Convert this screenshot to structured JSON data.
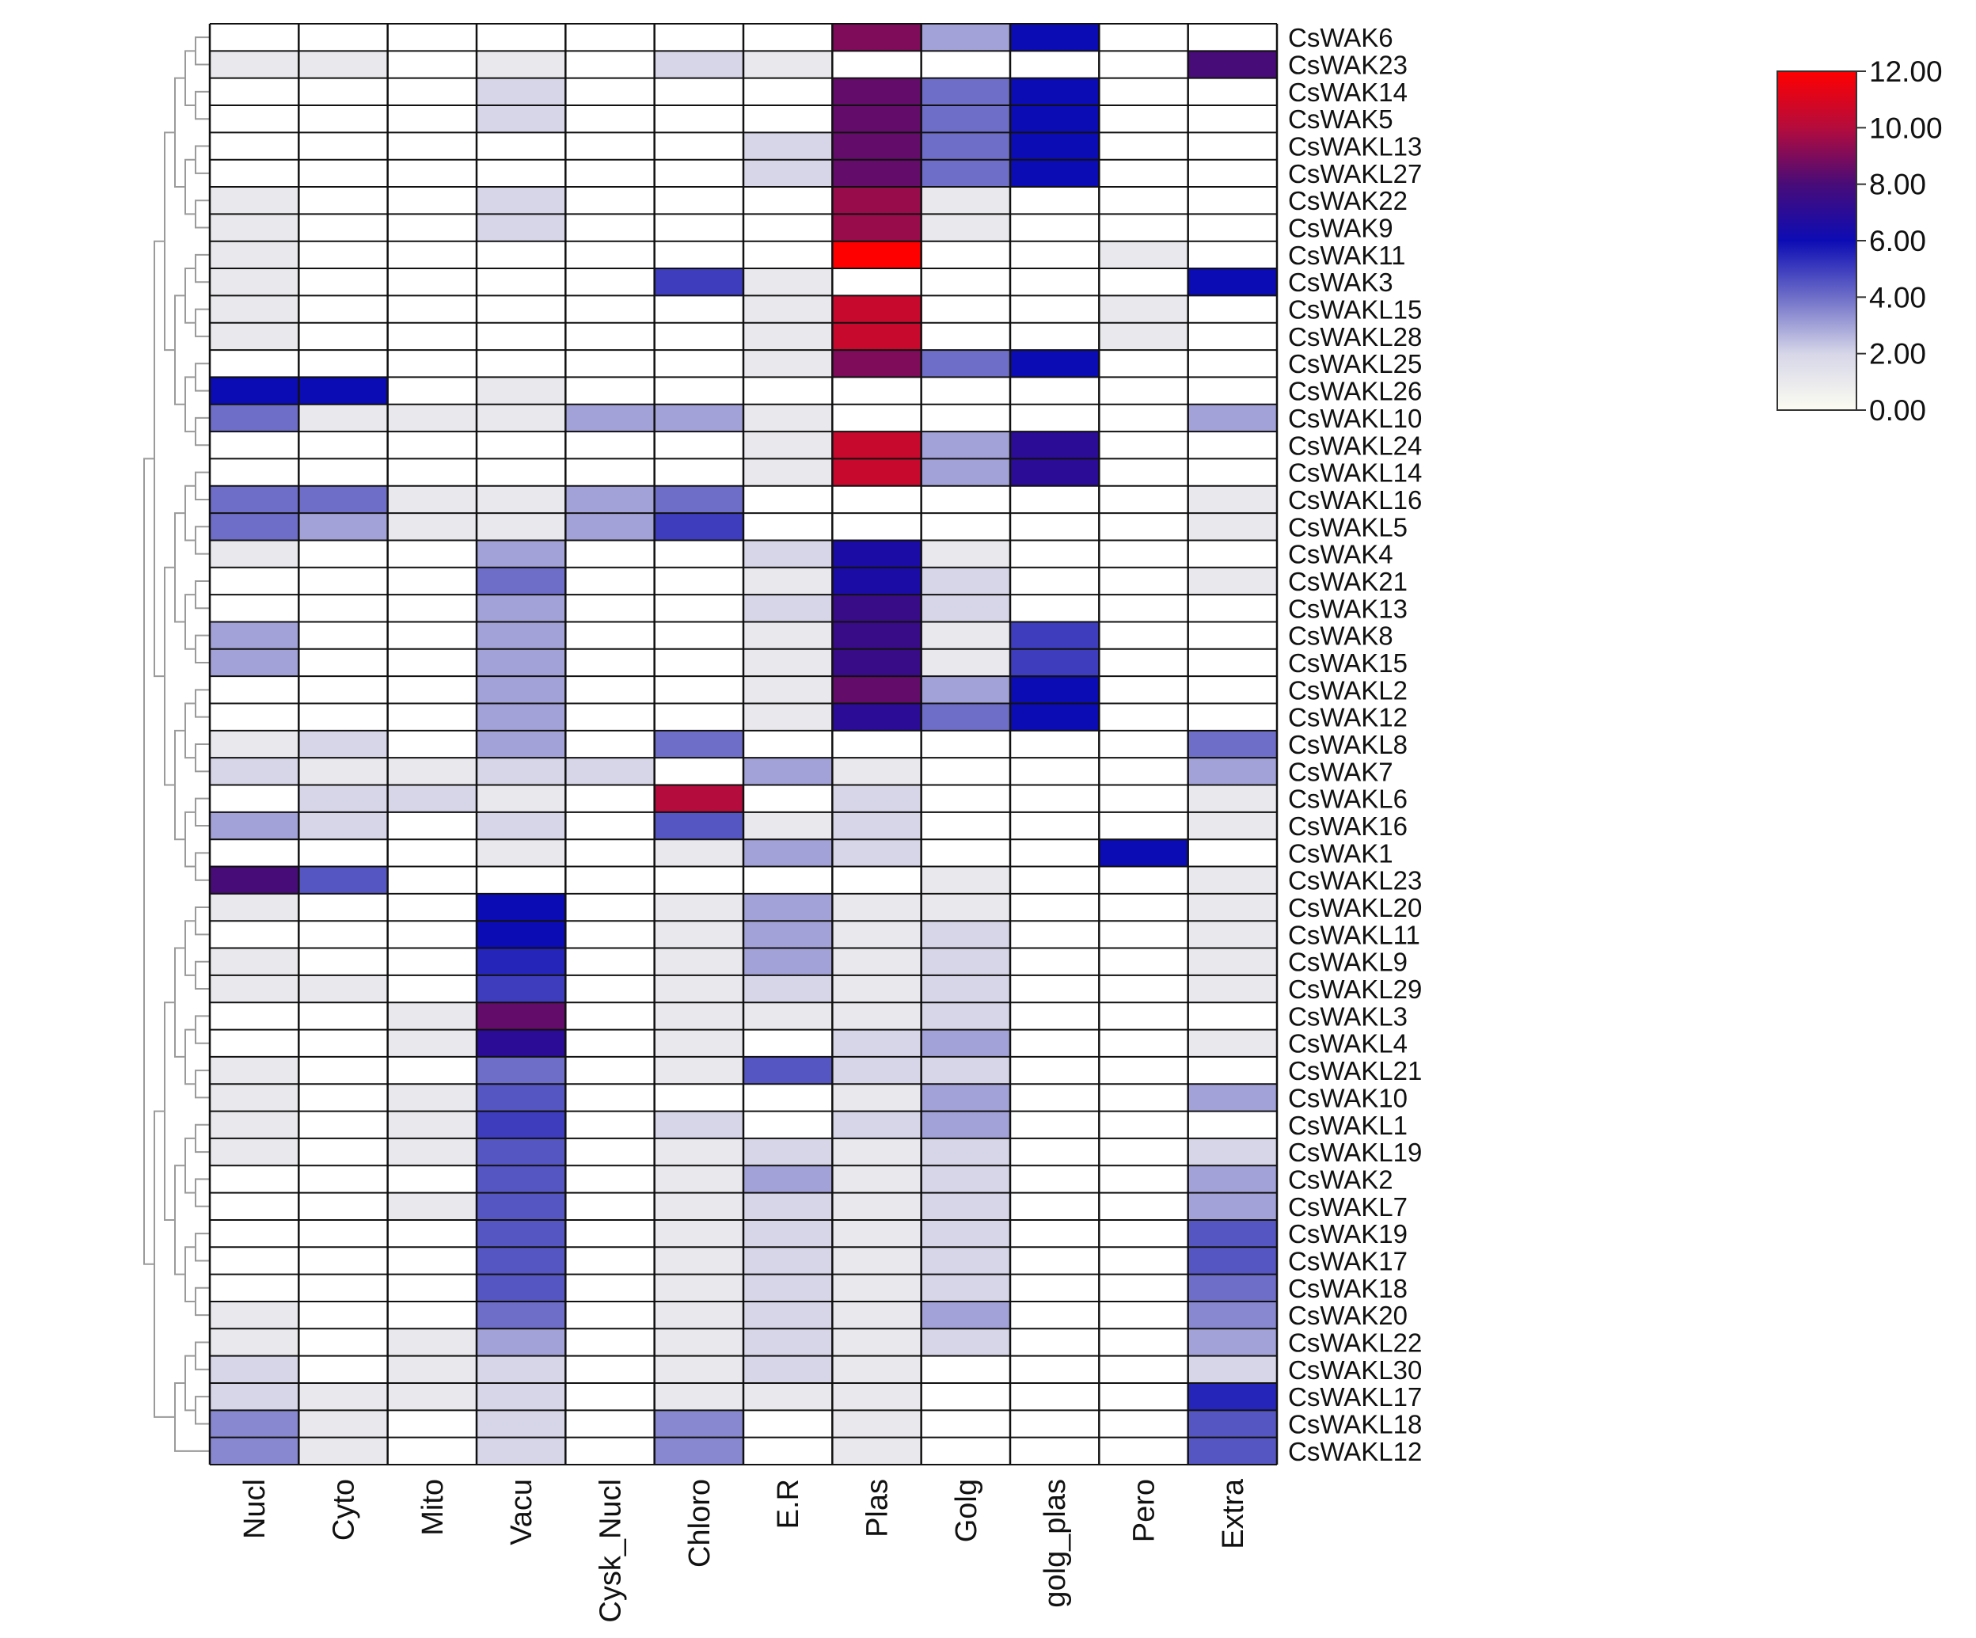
{
  "chart_data": {
    "type": "heatmap",
    "title": "",
    "columns": [
      "Nucl",
      "Cyto",
      "Mito",
      "Vacu",
      "Cysk_Nucl",
      "Chloro",
      "E.R",
      "Plas",
      "Golg",
      "golg_plas",
      "Pero",
      "Extra"
    ],
    "rows": [
      "CsWAK6",
      "CsWAK23",
      "CsWAK14",
      "CsWAK5",
      "CsWAKL13",
      "CsWAKL27",
      "CsWAK22",
      "CsWAK9",
      "CsWAK11",
      "CsWAK3",
      "CsWAKL15",
      "CsWAKL28",
      "CsWAKL25",
      "CsWAKL26",
      "CsWAKL10",
      "CsWAKL24",
      "CsWAKL14",
      "CsWAKL16",
      "CsWAKL5",
      "CsWAK4",
      "CsWAK21",
      "CsWAK13",
      "CsWAK8",
      "CsWAK15",
      "CsWAKL2",
      "CsWAK12",
      "CsWAKL8",
      "CsWAK7",
      "CsWAKL6",
      "CsWAK16",
      "CsWAK1",
      "CsWAKL23",
      "CsWAKL20",
      "CsWAKL11",
      "CsWAKL9",
      "CsWAKL29",
      "CsWAKL3",
      "CsWAKL4",
      "CsWAKL21",
      "CsWAK10",
      "CsWAKL1",
      "CsWAKL19",
      "CsWAK2",
      "CsWAKL7",
      "CsWAK19",
      "CsWAK17",
      "CsWAK18",
      "CsWAK20",
      "CsWAKL22",
      "CsWAKL30",
      "CsWAKL17",
      "CsWAKL18",
      "CsWAKL12"
    ],
    "values": [
      [
        0,
        0,
        0,
        0,
        0,
        0,
        0,
        9,
        3,
        6,
        0,
        0
      ],
      [
        1,
        1,
        0,
        1,
        0,
        2,
        1,
        0,
        0,
        0,
        0,
        8
      ],
      [
        0,
        0,
        0,
        2,
        0,
        0,
        0,
        8.5,
        4,
        6,
        0,
        0
      ],
      [
        0,
        0,
        0,
        2,
        0,
        0,
        0,
        8.5,
        4,
        6,
        0,
        0
      ],
      [
        0,
        0,
        0,
        0,
        0,
        0,
        2,
        8.5,
        4,
        6,
        0,
        0
      ],
      [
        0,
        0,
        0,
        0,
        0,
        0,
        2,
        8.5,
        4,
        6,
        0,
        0
      ],
      [
        1,
        0,
        0,
        2,
        0,
        0,
        0,
        9.5,
        1,
        0,
        0,
        0
      ],
      [
        1,
        0,
        0,
        2,
        0,
        0,
        0,
        9.5,
        1,
        0,
        0,
        0
      ],
      [
        1,
        0,
        0,
        0,
        0,
        0,
        0,
        12,
        0,
        0,
        1,
        0
      ],
      [
        1,
        0,
        0,
        0,
        0,
        5,
        1,
        0,
        0,
        0,
        0,
        6
      ],
      [
        1,
        0,
        0,
        0,
        0,
        0,
        1,
        10.5,
        0,
        0,
        1,
        0
      ],
      [
        1,
        0,
        0,
        0,
        0,
        0,
        1,
        10.5,
        0,
        0,
        1,
        0
      ],
      [
        0,
        0,
        0,
        0,
        0,
        0,
        1,
        9,
        4,
        6,
        0,
        0
      ],
      [
        6,
        6,
        0,
        1,
        0,
        0,
        0,
        0,
        0,
        0,
        0,
        0
      ],
      [
        4,
        1,
        1,
        1,
        3,
        3,
        1,
        0,
        0,
        0,
        0,
        3
      ],
      [
        0,
        0,
        0,
        0,
        0,
        0,
        1,
        10.5,
        3,
        7,
        0,
        0
      ],
      [
        0,
        0,
        0,
        0,
        0,
        0,
        1,
        10.5,
        3,
        7,
        0,
        0
      ],
      [
        4,
        4,
        1,
        1,
        3,
        4,
        0,
        0,
        0,
        0,
        0,
        1
      ],
      [
        4,
        3,
        1,
        1,
        3,
        5,
        0,
        0,
        0,
        0,
        0,
        1
      ],
      [
        1,
        0,
        0,
        3,
        0,
        0,
        2,
        6.5,
        1,
        0,
        0,
        0
      ],
      [
        0,
        0,
        0,
        4,
        0,
        0,
        1,
        6.5,
        2,
        0,
        0,
        1
      ],
      [
        0,
        0,
        0,
        3,
        0,
        0,
        2,
        7.5,
        2,
        0,
        0,
        0
      ],
      [
        3,
        0,
        0,
        3,
        0,
        0,
        1,
        7.5,
        1,
        5,
        0,
        0
      ],
      [
        3,
        0,
        0,
        3,
        0,
        0,
        1,
        7.5,
        1,
        5,
        0,
        0
      ],
      [
        0,
        0,
        0,
        3,
        0,
        0,
        1,
        8.5,
        3,
        6,
        0,
        0
      ],
      [
        0,
        0,
        0,
        3,
        0,
        0,
        1,
        7,
        4,
        6,
        0,
        0
      ],
      [
        1,
        2,
        0,
        3,
        0,
        4,
        0,
        0,
        0,
        0,
        0,
        4
      ],
      [
        2,
        1,
        1,
        2,
        2,
        0,
        3,
        1,
        0,
        0,
        0,
        3
      ],
      [
        0,
        2,
        2,
        1,
        0,
        10,
        0,
        2,
        0,
        0,
        0,
        1
      ],
      [
        3,
        2,
        0,
        2,
        0,
        4.5,
        1,
        2,
        0,
        0,
        0,
        1
      ],
      [
        0,
        0,
        0,
        1,
        0,
        1,
        3,
        2,
        0,
        0,
        6,
        0
      ],
      [
        8,
        4.5,
        0,
        0,
        0,
        0,
        0,
        0,
        1,
        0,
        0,
        1
      ],
      [
        1,
        0,
        0,
        6,
        0,
        1,
        3,
        1,
        1,
        0,
        0,
        1
      ],
      [
        0,
        0,
        0,
        6,
        0,
        1,
        3,
        1,
        2,
        0,
        0,
        1
      ],
      [
        1,
        0,
        0,
        5.5,
        0,
        1,
        3,
        1,
        2,
        0,
        0,
        1
      ],
      [
        1,
        1,
        0,
        5,
        0,
        1,
        2,
        1,
        2,
        0,
        0,
        1
      ],
      [
        0,
        0,
        1,
        8.5,
        0,
        1,
        1,
        1,
        2,
        0,
        0,
        0
      ],
      [
        0,
        0,
        1,
        7,
        0,
        1,
        0,
        2,
        3,
        0,
        0,
        1
      ],
      [
        1,
        0,
        0,
        4,
        0,
        1,
        4.5,
        2,
        2,
        0,
        0,
        0
      ],
      [
        1,
        0,
        1,
        4.5,
        0,
        0,
        0,
        1,
        3,
        0,
        0,
        3
      ],
      [
        1,
        0,
        1,
        5,
        0,
        2,
        0,
        2,
        3,
        0,
        0,
        0
      ],
      [
        1,
        0,
        1,
        4.5,
        0,
        1,
        2,
        1,
        2,
        0,
        0,
        2
      ],
      [
        0,
        0,
        0,
        4.5,
        0,
        1,
        3,
        1,
        2,
        0,
        0,
        3
      ],
      [
        0,
        0,
        1,
        4.5,
        0,
        1,
        2,
        1,
        2,
        0,
        0,
        3
      ],
      [
        0,
        0,
        0,
        4.5,
        0,
        1,
        2,
        1,
        2,
        0,
        0,
        4.5
      ],
      [
        0,
        0,
        0,
        4.5,
        0,
        1,
        2,
        1,
        2,
        0,
        0,
        4.5
      ],
      [
        0,
        0,
        0,
        4.5,
        0,
        1,
        2,
        1,
        2,
        0,
        0,
        4
      ],
      [
        1,
        0,
        0,
        4,
        0,
        1,
        2,
        1,
        3,
        0,
        0,
        3.5
      ],
      [
        1,
        0,
        1,
        3,
        0,
        1,
        2,
        1,
        2,
        0,
        0,
        3
      ],
      [
        2,
        0,
        1,
        2,
        0,
        1,
        2,
        1,
        0,
        0,
        0,
        2
      ],
      [
        2,
        1,
        1,
        2,
        0,
        1,
        1,
        1,
        0,
        0,
        0,
        5.5
      ],
      [
        3.5,
        1,
        0,
        2,
        0,
        3.5,
        0,
        1,
        0,
        0,
        0,
        4.5
      ],
      [
        3.5,
        1,
        0,
        2,
        0,
        3.5,
        0,
        1,
        0,
        0,
        0,
        4.5
      ]
    ],
    "value_range": [
      0,
      12
    ],
    "colorbar": {
      "ticks": [
        "12.00",
        "10.00",
        "8.00",
        "6.00",
        "4.00",
        "2.00",
        "0.00"
      ],
      "tick_values": [
        12,
        10,
        8,
        6,
        4,
        2,
        0
      ],
      "stops": [
        {
          "value": 0,
          "color": "#fcfcf2"
        },
        {
          "value": 2,
          "color": "#d6d6e8"
        },
        {
          "value": 4,
          "color": "#6e6ec8"
        },
        {
          "value": 6,
          "color": "#0c0cb4"
        },
        {
          "value": 8,
          "color": "#480c78"
        },
        {
          "value": 10,
          "color": "#b40c3c"
        },
        {
          "value": 12,
          "color": "#ff0000"
        }
      ]
    },
    "dendrogram": "left",
    "legend_position": "top-right",
    "grid_color": "#111111"
  }
}
